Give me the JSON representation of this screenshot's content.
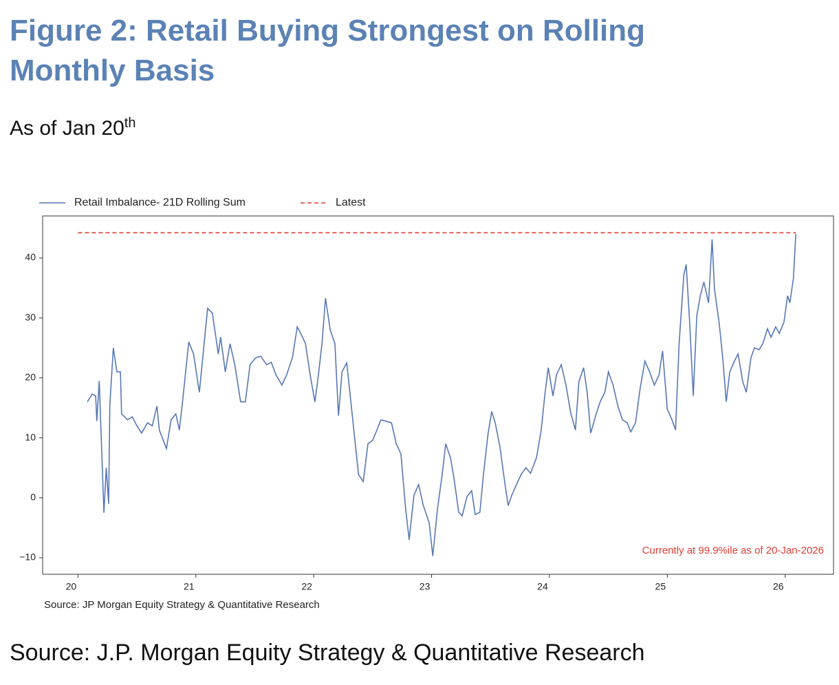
{
  "chart_data": {
    "type": "line",
    "title": "Figure 2: Retail Buying Strongest on Rolling Monthly Basis",
    "subtitle": {
      "text": "As of Jan 20",
      "superscript": "th"
    },
    "annotation": "Currently at 99.9%ile as of 20-Jan-2026",
    "chart_source": "Source: JP Morgan Equity Strategy & Quantitative Research",
    "source": "Source: J.P. Morgan Equity Strategy & Quantitative Research",
    "xlim": [
      19.7,
      26.41
    ],
    "xticks": [
      20,
      21,
      22,
      23,
      24,
      25,
      26
    ],
    "ylim": [
      -12.75,
      47.0
    ],
    "yticks": [
      {
        "value": -10,
        "label": "−10"
      },
      0,
      10,
      20,
      30,
      40
    ],
    "grid": false,
    "legend": "top-left",
    "series": [
      {
        "name": "Retail Imbalance- 21D Rolling Sum",
        "color": "#5677b4",
        "dashed": false,
        "x": [
          20.08,
          20.12,
          20.15,
          20.16,
          20.18,
          20.2,
          20.22,
          20.24,
          20.26,
          20.27,
          20.3,
          20.33,
          20.36,
          20.37,
          20.42,
          20.46,
          20.5,
          20.54,
          20.59,
          20.63,
          20.67,
          20.69,
          20.75,
          20.79,
          20.83,
          20.86,
          20.89,
          20.94,
          20.98,
          21.03,
          21.07,
          21.1,
          21.14,
          21.19,
          21.21,
          21.25,
          21.29,
          21.33,
          21.38,
          21.42,
          21.46,
          21.51,
          21.55,
          21.6,
          21.64,
          21.68,
          21.73,
          21.77,
          21.82,
          21.86,
          21.89,
          21.93,
          21.97,
          22.01,
          22.04,
          22.07,
          22.1,
          22.14,
          22.18,
          22.21,
          22.24,
          22.28,
          22.31,
          22.34,
          22.38,
          22.42,
          22.46,
          22.5,
          22.53,
          22.57,
          22.61,
          22.66,
          22.7,
          22.74,
          22.78,
          22.81,
          22.85,
          22.89,
          22.93,
          22.98,
          23.01,
          23.05,
          23.09,
          23.12,
          23.16,
          23.19,
          23.23,
          23.26,
          23.3,
          23.34,
          23.37,
          23.41,
          23.44,
          23.48,
          23.51,
          23.54,
          23.58,
          23.62,
          23.65,
          23.68,
          23.72,
          23.76,
          23.8,
          23.84,
          23.89,
          23.93,
          23.96,
          23.99,
          24.03,
          24.06,
          24.1,
          24.14,
          24.18,
          24.22,
          24.25,
          24.29,
          24.32,
          24.35,
          24.4,
          24.43,
          24.47,
          24.5,
          24.54,
          24.58,
          24.62,
          24.66,
          24.69,
          24.73,
          24.77,
          24.81,
          24.85,
          24.89,
          24.93,
          24.96,
          25.0,
          25.04,
          25.07,
          25.1,
          25.14,
          25.16,
          25.19,
          25.22,
          25.25,
          25.28,
          25.31,
          25.35,
          25.38,
          25.4,
          25.44,
          25.47,
          25.5,
          25.53,
          25.57,
          25.6,
          25.64,
          25.67,
          25.71,
          25.74,
          25.78,
          25.81,
          25.85,
          25.88,
          25.92,
          25.95,
          25.99,
          26.02,
          26.04,
          26.07,
          26.09
        ],
        "values": [
          16,
          17.3,
          17,
          12.8,
          19.5,
          8.5,
          -2.5,
          5,
          -1,
          15.5,
          25,
          21,
          21,
          14,
          13,
          13.5,
          12,
          10.8,
          12.5,
          12,
          15.3,
          11.3,
          8.2,
          13,
          14,
          11.3,
          16.5,
          26,
          24,
          17.6,
          25.7,
          31.6,
          30.8,
          24,
          26.8,
          21,
          25.7,
          22.2,
          16,
          16,
          22.2,
          23.4,
          23.6,
          22.2,
          22.6,
          20.5,
          18.8,
          20.5,
          23.4,
          28.5,
          27.4,
          25.7,
          20.5,
          16,
          20.5,
          25.7,
          33.3,
          28,
          25.7,
          13.7,
          21,
          22.5,
          17,
          11.3,
          3.9,
          2.7,
          9,
          9.6,
          11,
          13,
          12.8,
          12.5,
          9,
          7.3,
          -1.9,
          -7,
          0.4,
          2.2,
          -1.3,
          -4.2,
          -9.7,
          -1.9,
          3.9,
          9,
          6.7,
          3.3,
          -2.4,
          -3,
          0.2,
          1.2,
          -2.8,
          -2.4,
          3.9,
          10.8,
          14.4,
          12.5,
          8.5,
          2.7,
          -1.3,
          0.4,
          2.2,
          3.9,
          5,
          4.1,
          6.7,
          11.3,
          17,
          21.7,
          17,
          20.5,
          22.2,
          18.8,
          14.2,
          11.3,
          19.4,
          21.7,
          17.6,
          10.8,
          14.2,
          16,
          17.6,
          21,
          18.8,
          15.3,
          13,
          12.5,
          11,
          12.5,
          18.3,
          22.8,
          21,
          18.8,
          20.5,
          24.5,
          14.8,
          13,
          11.3,
          25.7,
          37.1,
          38.9,
          29.1,
          17,
          30.3,
          33.7,
          36,
          32.5,
          43.1,
          34.8,
          29.1,
          23.4,
          16,
          21,
          22.8,
          24,
          19.4,
          17.6,
          23.4,
          25,
          24.7,
          25.7,
          28.2,
          26.8,
          28.5,
          27.4,
          29.3,
          33.7,
          32.5,
          36.6,
          44
        ]
      },
      {
        "name": "Latest",
        "color": "#e03c31",
        "dashed": true,
        "x": [
          20.0,
          26.09
        ],
        "values": [
          44.2,
          44.2
        ]
      }
    ]
  }
}
